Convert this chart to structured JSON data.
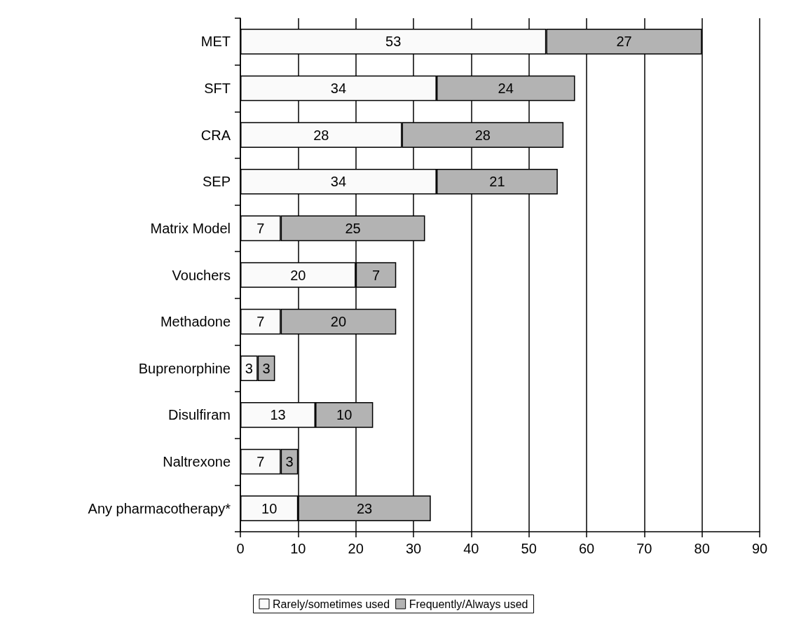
{
  "chart_data": {
    "type": "bar",
    "orientation": "horizontal",
    "stacked": true,
    "data_labels": true,
    "categories": [
      "MET",
      "SFT",
      "CRA",
      "SEP",
      "Matrix Model",
      "Vouchers",
      "Methadone",
      "Buprenorphine",
      "Disulfiram",
      "Naltrexone",
      "Any pharmacotherapy*"
    ],
    "series": [
      {
        "name": "Rarely/sometimes used",
        "color": "#fafafa",
        "values": [
          53,
          34,
          28,
          34,
          7,
          20,
          7,
          3,
          13,
          7,
          10
        ]
      },
      {
        "name": "Frequently/Always used",
        "color": "#b3b3b3",
        "values": [
          27,
          24,
          28,
          21,
          25,
          7,
          20,
          3,
          10,
          3,
          23
        ]
      }
    ],
    "xlim": [
      0,
      90
    ],
    "xticks": [
      0,
      10,
      20,
      30,
      40,
      50,
      60,
      70,
      80,
      90
    ],
    "grid": "x",
    "legend": "bottom"
  }
}
